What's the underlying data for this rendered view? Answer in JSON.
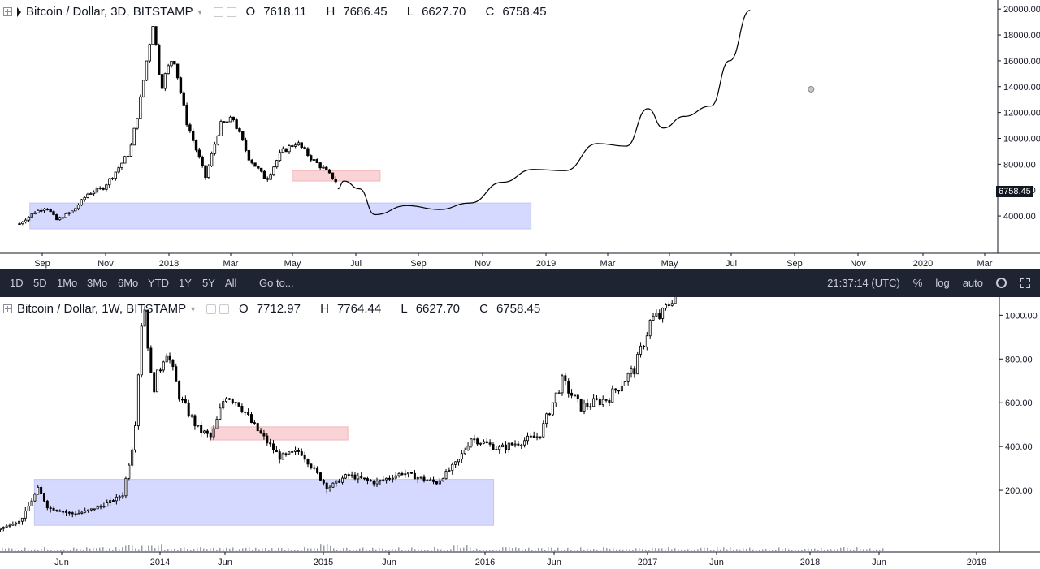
{
  "top": {
    "symbol": "Bitcoin / Dollar, 3D, BITSTAMP",
    "ohlc": {
      "o": "7618.11",
      "h": "7686.45",
      "l": "6627.70",
      "c": "6758.45"
    },
    "o_label": "O",
    "h_label": "H",
    "l_label": "L",
    "c_label": "C",
    "last_price": "6758.45"
  },
  "bottom": {
    "symbol": "Bitcoin / Dollar, 1W, BITSTAMP",
    "ohlc": {
      "o": "7712.97",
      "h": "7764.44",
      "l": "6627.70",
      "c": "6758.45"
    },
    "o_label": "O",
    "h_label": "H",
    "l_label": "L",
    "c_label": "C"
  },
  "toolbar": {
    "ranges": [
      "1D",
      "5D",
      "1Mo",
      "3Mo",
      "6Mo",
      "YTD",
      "1Y",
      "5Y",
      "All"
    ],
    "goto": "Go to...",
    "time": "21:37:14 (UTC)",
    "percent": "%",
    "log": "log",
    "auto": "auto"
  },
  "colors": {
    "up": "#ffffff",
    "down": "#000000",
    "support_zone": "#d5d9ff",
    "resistance_zone": "#f9d3d5",
    "toolbar_bg": "#1f2433",
    "axis_text": "#131722"
  },
  "chart_data": [
    {
      "type": "candlestick",
      "title": "Bitcoin / Dollar, 3D, BITSTAMP",
      "x_ticks": [
        "Sep",
        "Nov",
        "2018",
        "Mar",
        "May",
        "Jul",
        "Sep",
        "Nov",
        "2019",
        "Mar",
        "May",
        "Jul",
        "Sep",
        "Nov",
        "2020",
        "Mar"
      ],
      "y_ticks": [
        "4000.00",
        "6000.00",
        "8000.00",
        "10000.00",
        "12000.00",
        "14000.00",
        "16000.00",
        "18000.00",
        "20000.00"
      ],
      "ylim": [
        3000,
        20200
      ],
      "close_path": [
        [
          "2017-08-10",
          3400
        ],
        [
          "2017-08-25",
          4300
        ],
        [
          "2017-09-05",
          4700
        ],
        [
          "2017-09-15",
          3700
        ],
        [
          "2017-10-01",
          4400
        ],
        [
          "2017-10-15",
          5700
        ],
        [
          "2017-10-30",
          6200
        ],
        [
          "2017-11-10",
          7300
        ],
        [
          "2017-11-25",
          9000
        ],
        [
          "2017-12-05",
          13000
        ],
        [
          "2017-12-17",
          19000
        ],
        [
          "2017-12-25",
          14000
        ],
        [
          "2018-01-06",
          16500
        ],
        [
          "2018-01-18",
          11500
        ],
        [
          "2018-02-06",
          7000
        ],
        [
          "2018-02-20",
          11000
        ],
        [
          "2018-03-05",
          11500
        ],
        [
          "2018-03-20",
          8500
        ],
        [
          "2018-04-06",
          6800
        ],
        [
          "2018-04-20",
          8900
        ],
        [
          "2018-05-05",
          9700
        ],
        [
          "2018-05-20",
          8400
        ],
        [
          "2018-06-01",
          7600
        ],
        [
          "2018-06-12",
          6700
        ]
      ],
      "projection_path": [
        [
          "2018-06-14",
          6100
        ],
        [
          "2018-06-20",
          6700
        ],
        [
          "2018-07-05",
          6100
        ],
        [
          "2018-07-20",
          4100
        ],
        [
          "2018-08-20",
          4800
        ],
        [
          "2018-09-20",
          4500
        ],
        [
          "2018-10-20",
          5000
        ],
        [
          "2018-11-20",
          6600
        ],
        [
          "2018-12-20",
          7600
        ],
        [
          "2019-01-20",
          7500
        ],
        [
          "2019-02-20",
          9600
        ],
        [
          "2019-03-20",
          9400
        ],
        [
          "2019-04-10",
          12300
        ],
        [
          "2019-04-25",
          10800
        ],
        [
          "2019-05-15",
          11700
        ],
        [
          "2019-06-10",
          12500
        ],
        [
          "2019-06-28",
          16000
        ],
        [
          "2019-07-18",
          19900
        ]
      ],
      "zones": [
        {
          "from": "2017-08-20",
          "to": "2018-12-18",
          "low": 3000,
          "high": 5000,
          "color": "blue"
        },
        {
          "from": "2018-05-01",
          "to": "2018-07-25",
          "low": 6700,
          "high": 7500,
          "color": "red"
        }
      ],
      "marker": {
        "date": "2019-09-15",
        "value": 13800
      }
    },
    {
      "type": "candlestick",
      "title": "Bitcoin / Dollar, 1W, BITSTAMP",
      "x_ticks": [
        "Jun",
        "2014",
        "Jun",
        "2015",
        "Jun",
        "2016",
        "Jun",
        "2017",
        "Jun",
        "2018",
        "Jun",
        "2019"
      ],
      "y_ticks": [
        "200.00",
        "400.00",
        "600.00",
        "800.00",
        "1000.00"
      ],
      "ylim": [
        0,
        1120
      ],
      "close_path": [
        [
          "2013-01-01",
          15
        ],
        [
          "2013-03-01",
          60
        ],
        [
          "2013-04-10",
          210
        ],
        [
          "2013-05-01",
          120
        ],
        [
          "2013-07-01",
          90
        ],
        [
          "2013-09-01",
          130
        ],
        [
          "2013-10-15",
          180
        ],
        [
          "2013-11-10",
          450
        ],
        [
          "2013-11-30",
          1100
        ],
        [
          "2013-12-20",
          650
        ],
        [
          "2014-01-20",
          850
        ],
        [
          "2014-02-20",
          620
        ],
        [
          "2014-04-01",
          480
        ],
        [
          "2014-05-01",
          440
        ],
        [
          "2014-06-01",
          640
        ],
        [
          "2014-07-01",
          600
        ],
        [
          "2014-08-01",
          500
        ],
        [
          "2014-10-01",
          350
        ],
        [
          "2014-11-15",
          380
        ],
        [
          "2015-01-15",
          210
        ],
        [
          "2015-03-01",
          270
        ],
        [
          "2015-05-01",
          235
        ],
        [
          "2015-07-01",
          280
        ],
        [
          "2015-08-01",
          260
        ],
        [
          "2015-09-15",
          235
        ],
        [
          "2015-11-01",
          330
        ],
        [
          "2015-12-01",
          440
        ],
        [
          "2016-02-01",
          390
        ],
        [
          "2016-05-01",
          450
        ],
        [
          "2016-06-20",
          700
        ],
        [
          "2016-08-01",
          580
        ],
        [
          "2016-10-01",
          620
        ],
        [
          "2016-12-01",
          760
        ],
        [
          "2017-01-05",
          980
        ],
        [
          "2017-02-01",
          1000
        ],
        [
          "2017-03-01",
          1120
        ]
      ],
      "zones": [
        {
          "from": "2013-04-01",
          "to": "2016-01-20",
          "low": 40,
          "high": 250,
          "color": "blue"
        },
        {
          "from": "2014-05-01",
          "to": "2015-03-01",
          "low": 430,
          "high": 490,
          "color": "red"
        }
      ]
    }
  ]
}
